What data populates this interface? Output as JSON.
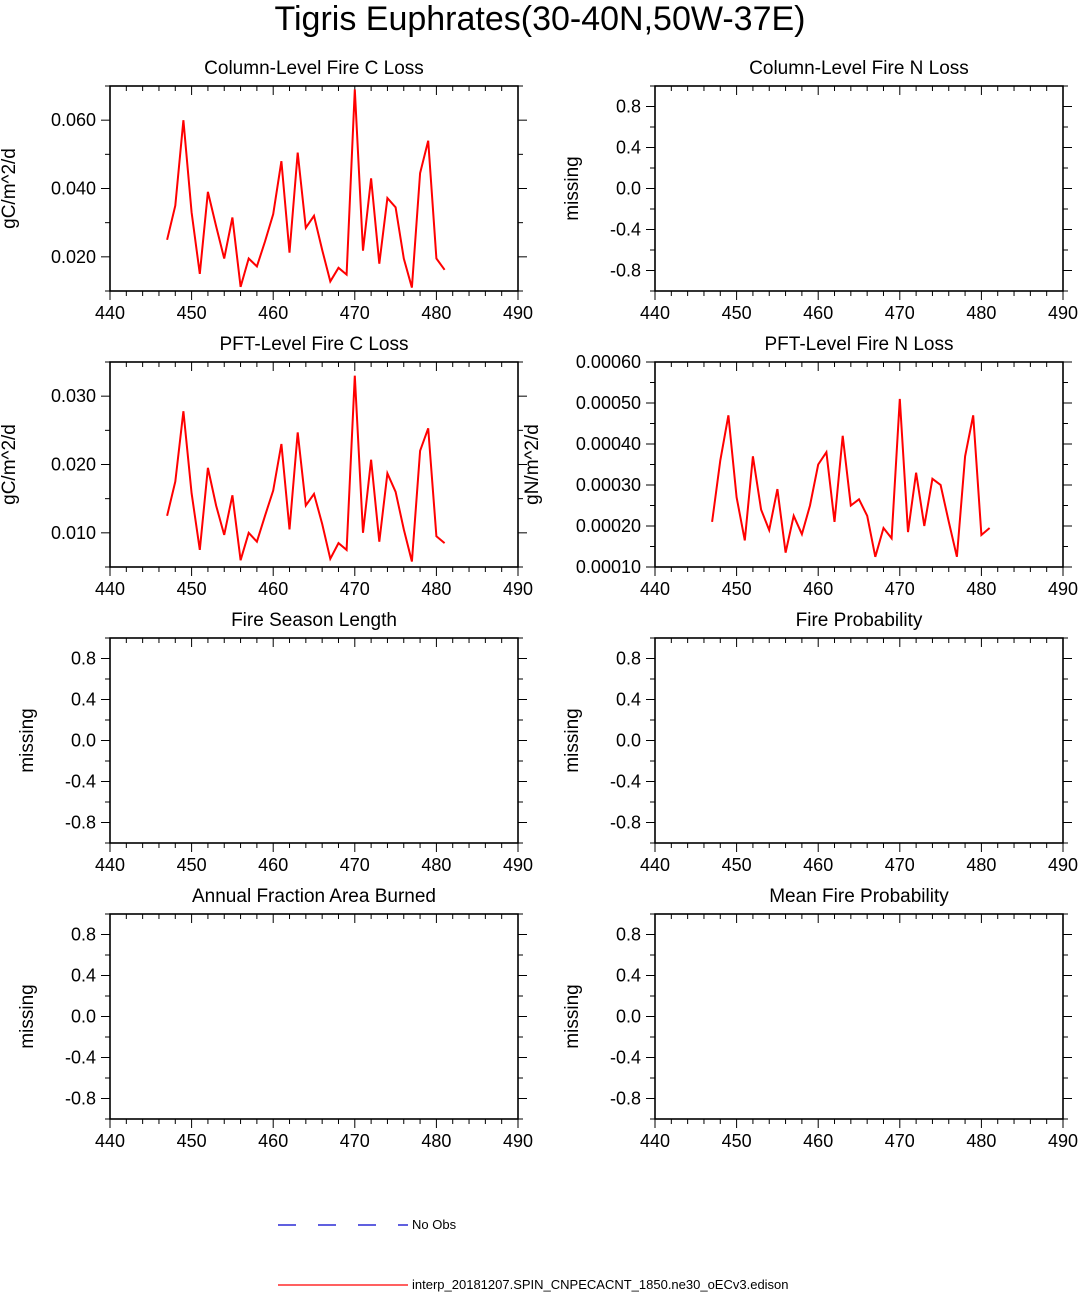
{
  "page_title": "Tigris Euphrates(30-40N,50W-37E)",
  "legend": {
    "no_obs_label": "No Obs",
    "model_label": "interp_20181207.SPIN_CNPECACNT_1850.ne30_oECv3.edison",
    "no_obs_color": "#0000cc",
    "model_color": "#ff0000"
  },
  "chart_data": [
    {
      "type": "line",
      "title": "Column-Level Fire C Loss",
      "ylabel": "gC/m^2/d",
      "xlim": [
        440,
        490
      ],
      "ylim": [
        0.01,
        0.07
      ],
      "xticks": [
        440,
        450,
        460,
        470,
        480,
        490
      ],
      "yticks": [
        0.02,
        0.04,
        0.06
      ],
      "yticklabels": [
        "0.020",
        "0.040",
        "0.060"
      ],
      "series": [
        {
          "name": "interp_20181207.SPIN_CNPECACNT_1850.ne30_oECv3.edison",
          "color": "#ff0000",
          "x": [
            447,
            448,
            449,
            450,
            451,
            452,
            453,
            454,
            455,
            456,
            457,
            458,
            459,
            460,
            461,
            462,
            463,
            464,
            465,
            466,
            467,
            468,
            469,
            470,
            471,
            472,
            473,
            474,
            475,
            476,
            477,
            478,
            479,
            480,
            481
          ],
          "y": [
            0.025,
            0.035,
            0.06,
            0.033,
            0.015,
            0.039,
            0.029,
            0.0195,
            0.0315,
            0.0112,
            0.0195,
            0.0172,
            0.0245,
            0.0325,
            0.048,
            0.0212,
            0.0505,
            0.0285,
            0.032,
            0.022,
            0.0128,
            0.0168,
            0.0148,
            0.069,
            0.0218,
            0.043,
            0.018,
            0.0372,
            0.0345,
            0.0195,
            0.011,
            0.0445,
            0.054,
            0.0195,
            0.0162
          ]
        }
      ]
    },
    {
      "type": "line",
      "title": "Column-Level Fire N Loss",
      "ylabel": "missing",
      "xlim": [
        440,
        490
      ],
      "ylim": [
        -1.0,
        1.0
      ],
      "xticks": [
        440,
        450,
        460,
        470,
        480,
        490
      ],
      "yticks": [
        -0.8,
        -0.4,
        0.0,
        0.4,
        0.8
      ],
      "yticklabels": [
        "-0.8",
        "-0.4",
        "0.0",
        "0.4",
        "0.8"
      ],
      "series": []
    },
    {
      "type": "line",
      "title": "PFT-Level Fire C Loss",
      "ylabel": "gC/m^2/d",
      "xlim": [
        440,
        490
      ],
      "ylim": [
        0.005,
        0.035
      ],
      "xticks": [
        440,
        450,
        460,
        470,
        480,
        490
      ],
      "yticks": [
        0.01,
        0.02,
        0.03
      ],
      "yticklabels": [
        "0.010",
        "0.020",
        "0.030"
      ],
      "series": [
        {
          "name": "interp_20181207.SPIN_CNPECACNT_1850.ne30_oECv3.edison",
          "color": "#ff0000",
          "x": [
            447,
            448,
            449,
            450,
            451,
            452,
            453,
            454,
            455,
            456,
            457,
            458,
            459,
            460,
            461,
            462,
            463,
            464,
            465,
            466,
            467,
            468,
            469,
            470,
            471,
            472,
            473,
            474,
            475,
            476,
            477,
            478,
            479,
            480,
            481
          ],
          "y": [
            0.0125,
            0.0175,
            0.0278,
            0.0158,
            0.0075,
            0.0195,
            0.014,
            0.0097,
            0.0155,
            0.006,
            0.01,
            0.0087,
            0.0125,
            0.0162,
            0.023,
            0.0105,
            0.0247,
            0.014,
            0.0157,
            0.0113,
            0.0062,
            0.0085,
            0.0075,
            0.033,
            0.01,
            0.0207,
            0.0087,
            0.0187,
            0.016,
            0.0105,
            0.0058,
            0.022,
            0.0253,
            0.0095,
            0.0085
          ]
        }
      ]
    },
    {
      "type": "line",
      "title": "PFT-Level Fire N Loss",
      "ylabel": "gN/m^2/d",
      "xlim": [
        440,
        490
      ],
      "ylim": [
        0.0001,
        0.0006
      ],
      "xticks": [
        440,
        450,
        460,
        470,
        480,
        490
      ],
      "yticks": [
        0.0001,
        0.0002,
        0.0003,
        0.0004,
        0.0005,
        0.0006
      ],
      "yticklabels": [
        "0.00010",
        "0.00020",
        "0.00030",
        "0.00040",
        "0.00050",
        "0.00060"
      ],
      "series": [
        {
          "name": "interp_20181207.SPIN_CNPECACNT_1850.ne30_oECv3.edison",
          "color": "#ff0000",
          "x": [
            447,
            448,
            449,
            450,
            451,
            452,
            453,
            454,
            455,
            456,
            457,
            458,
            459,
            460,
            461,
            462,
            463,
            464,
            465,
            466,
            467,
            468,
            469,
            470,
            471,
            472,
            473,
            474,
            475,
            476,
            477,
            478,
            479,
            480,
            481
          ],
          "y": [
            0.00021,
            0.00036,
            0.00047,
            0.00027,
            0.000165,
            0.00037,
            0.00024,
            0.00019,
            0.00029,
            0.000135,
            0.000225,
            0.00018,
            0.00025,
            0.00035,
            0.00038,
            0.00021,
            0.00042,
            0.00025,
            0.000265,
            0.000225,
            0.000125,
            0.000195,
            0.00017,
            0.00051,
            0.000185,
            0.00033,
            0.0002,
            0.000315,
            0.0003,
            0.00021,
            0.000125,
            0.00037,
            0.00047,
            0.000178,
            0.000195
          ]
        }
      ]
    },
    {
      "type": "line",
      "title": "Fire Season Length",
      "ylabel": "missing",
      "xlim": [
        440,
        490
      ],
      "ylim": [
        -1.0,
        1.0
      ],
      "xticks": [
        440,
        450,
        460,
        470,
        480,
        490
      ],
      "yticks": [
        -0.8,
        -0.4,
        0.0,
        0.4,
        0.8
      ],
      "yticklabels": [
        "-0.8",
        "-0.4",
        "0.0",
        "0.4",
        "0.8"
      ],
      "series": []
    },
    {
      "type": "line",
      "title": "Fire Probability",
      "ylabel": "missing",
      "xlim": [
        440,
        490
      ],
      "ylim": [
        -1.0,
        1.0
      ],
      "xticks": [
        440,
        450,
        460,
        470,
        480,
        490
      ],
      "yticks": [
        -0.8,
        -0.4,
        0.0,
        0.4,
        0.8
      ],
      "yticklabels": [
        "-0.8",
        "-0.4",
        "0.0",
        "0.4",
        "0.8"
      ],
      "series": []
    },
    {
      "type": "line",
      "title": "Annual Fraction Area Burned",
      "ylabel": "missing",
      "xlim": [
        440,
        490
      ],
      "ylim": [
        -1.0,
        1.0
      ],
      "xticks": [
        440,
        450,
        460,
        470,
        480,
        490
      ],
      "yticks": [
        -0.8,
        -0.4,
        0.0,
        0.4,
        0.8
      ],
      "yticklabels": [
        "-0.8",
        "-0.4",
        "0.0",
        "0.4",
        "0.8"
      ],
      "series": []
    },
    {
      "type": "line",
      "title": "Mean Fire Probability",
      "ylabel": "missing",
      "xlim": [
        440,
        490
      ],
      "ylim": [
        -1.0,
        1.0
      ],
      "xticks": [
        440,
        450,
        460,
        470,
        480,
        490
      ],
      "yticks": [
        -0.8,
        -0.4,
        0.0,
        0.4,
        0.8
      ],
      "yticklabels": [
        "-0.8",
        "-0.4",
        "0.0",
        "0.4",
        "0.8"
      ],
      "series": []
    }
  ]
}
